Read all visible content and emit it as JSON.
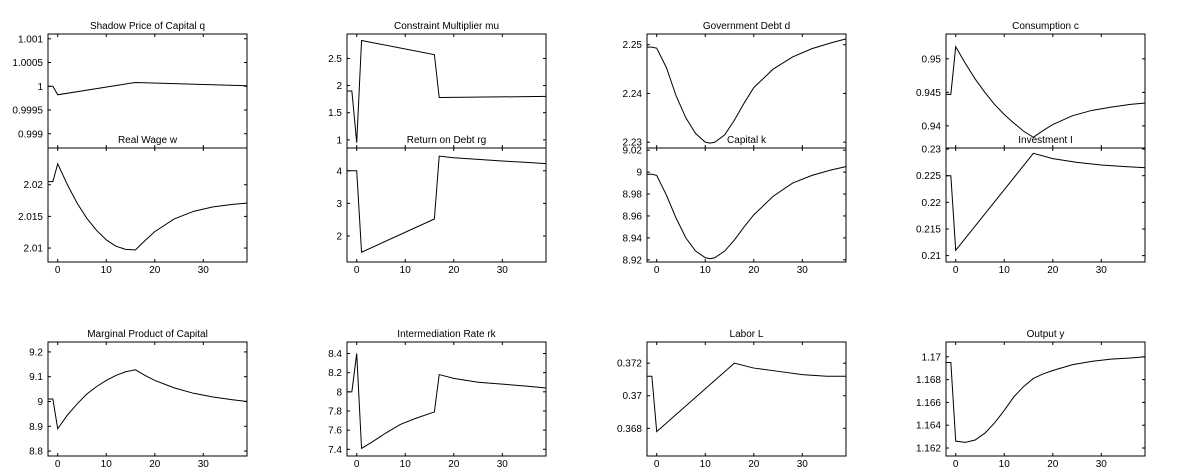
{
  "chart_data": [
    {
      "type": "line",
      "title": "Shadow Price of Capital q",
      "xlim": [
        -2,
        39
      ],
      "ylim": [
        0.9987,
        1.0011
      ],
      "xticks": [
        0,
        10,
        20,
        30
      ],
      "xtick_labels": [
        "0",
        "10",
        "20",
        "30"
      ],
      "yticks": [
        0.999,
        0.9995,
        1,
        1.0005,
        1.001
      ],
      "ytick_labels": [
        "0.999",
        "0.9995",
        "1",
        "1.0005",
        "1.001"
      ],
      "series": [
        {
          "x": [
            -2,
            -1,
            0,
            16,
            39
          ],
          "y": [
            1.0,
            1.0,
            0.99982,
            1.00008,
            1.00001
          ]
        }
      ]
    },
    {
      "type": "line",
      "title": "Constraint Multiplier mu",
      "xlim": [
        -2,
        39
      ],
      "ylim": [
        0.85,
        2.95
      ],
      "xticks": [
        0,
        10,
        20,
        30
      ],
      "xtick_labels": [
        "0",
        "10",
        "20",
        "30"
      ],
      "yticks": [
        1,
        1.5,
        2,
        2.5
      ],
      "ytick_labels": [
        "1",
        "1.5",
        "2",
        "2.5"
      ],
      "series": [
        {
          "x": [
            -2,
            -1,
            0,
            1,
            16,
            17,
            39
          ],
          "y": [
            1.9,
            1.9,
            0.95,
            2.83,
            2.57,
            1.78,
            1.8
          ]
        }
      ]
    },
    {
      "type": "line",
      "title": "Government Debt d",
      "xlim": [
        -2,
        39
      ],
      "ylim": [
        2.2288,
        2.2522
      ],
      "xticks": [
        0,
        10,
        20,
        30
      ],
      "xtick_labels": [
        "0",
        "10",
        "20",
        "30"
      ],
      "yticks": [
        2.23,
        2.24,
        2.25
      ],
      "ytick_labels": [
        "2.23",
        "2.24",
        "2.25"
      ],
      "series": [
        {
          "x": [
            -2,
            -1,
            0,
            2,
            4,
            6,
            8,
            10,
            11,
            12,
            14,
            16,
            18,
            20,
            24,
            28,
            32,
            36,
            39
          ],
          "y": [
            2.2495,
            2.2495,
            2.2493,
            2.2453,
            2.2395,
            2.235,
            2.2318,
            2.23,
            2.2298,
            2.23,
            2.2315,
            2.2345,
            2.238,
            2.2412,
            2.245,
            2.2475,
            2.2492,
            2.2504,
            2.2512
          ]
        }
      ]
    },
    {
      "type": "line",
      "title": "Consumption c",
      "xlim": [
        -2,
        39
      ],
      "ylim": [
        0.9367,
        0.9537
      ],
      "xticks": [
        0,
        10,
        20,
        30
      ],
      "xtick_labels": [
        "0",
        "10",
        "20",
        "30"
      ],
      "yticks": [
        0.94,
        0.945,
        0.95
      ],
      "ytick_labels": [
        "0.94",
        "0.945",
        "0.95"
      ],
      "series": [
        {
          "x": [
            -2,
            -1,
            0,
            2,
            4,
            6,
            8,
            10,
            12,
            14,
            16,
            18,
            20,
            24,
            28,
            32,
            36,
            39
          ],
          "y": [
            0.9447,
            0.9447,
            0.9518,
            0.9493,
            0.947,
            0.945,
            0.9432,
            0.9417,
            0.9404,
            0.9392,
            0.9383,
            0.9393,
            0.9402,
            0.9415,
            0.9423,
            0.9428,
            0.9432,
            0.9434
          ]
        }
      ]
    },
    {
      "type": "line",
      "title": "Real Wage w",
      "xlim": [
        -2,
        39
      ],
      "ylim": [
        2.0078,
        2.0258
      ],
      "xticks": [
        0,
        10,
        20,
        30
      ],
      "xtick_labels": [
        "0",
        "10",
        "20",
        "30"
      ],
      "yticks": [
        2.01,
        2.015,
        2.02
      ],
      "ytick_labels": [
        "2.01",
        "2.015",
        "2.02"
      ],
      "series": [
        {
          "x": [
            -2,
            -1,
            0,
            2,
            4,
            6,
            8,
            10,
            12,
            14,
            16,
            18,
            20,
            24,
            28,
            32,
            36,
            39
          ],
          "y": [
            2.0205,
            2.0205,
            2.0233,
            2.02,
            2.0171,
            2.0147,
            2.0128,
            2.0113,
            2.0103,
            2.0098,
            2.0097,
            2.0112,
            2.0126,
            2.0146,
            2.0158,
            2.0165,
            2.0169,
            2.0171
          ]
        }
      ]
    },
    {
      "type": "line",
      "title": "Return on Debt rg",
      "xlim": [
        -2,
        39
      ],
      "ylim": [
        1.2,
        4.7
      ],
      "xticks": [
        0,
        10,
        20,
        30
      ],
      "xtick_labels": [
        "0",
        "10",
        "20",
        "30"
      ],
      "yticks": [
        2,
        3,
        4
      ],
      "ytick_labels": [
        "2",
        "3",
        "4"
      ],
      "series": [
        {
          "x": [
            -2,
            -1,
            0,
            1,
            16,
            17,
            20,
            25,
            30,
            35,
            39
          ],
          "y": [
            4.0,
            4.0,
            4.0,
            1.5,
            2.52,
            4.45,
            4.4,
            4.35,
            4.3,
            4.26,
            4.22
          ]
        }
      ]
    },
    {
      "type": "line",
      "title": "Capital k",
      "xlim": [
        -2,
        39
      ],
      "ylim": [
        8.918,
        9.022
      ],
      "xticks": [
        0,
        10,
        20,
        30
      ],
      "xtick_labels": [
        "0",
        "10",
        "20",
        "30"
      ],
      "yticks": [
        8.92,
        8.94,
        8.96,
        8.98,
        9,
        9.02
      ],
      "ytick_labels": [
        "8.92",
        "8.94",
        "8.96",
        "8.98",
        "9",
        "9.02"
      ],
      "series": [
        {
          "x": [
            -2,
            -1,
            0,
            2,
            4,
            6,
            8,
            10,
            11,
            12,
            14,
            16,
            18,
            20,
            24,
            28,
            32,
            36,
            39
          ],
          "y": [
            8.998,
            8.998,
            8.997,
            8.979,
            8.958,
            8.94,
            8.928,
            8.922,
            8.921,
            8.922,
            8.928,
            8.938,
            8.95,
            8.961,
            8.978,
            8.99,
            8.997,
            9.002,
            9.005
          ]
        }
      ]
    },
    {
      "type": "line",
      "title": "Investment I",
      "xlim": [
        -2,
        39
      ],
      "ylim": [
        0.2088,
        0.2302
      ],
      "xticks": [
        0,
        10,
        20,
        30
      ],
      "xtick_labels": [
        "0",
        "10",
        "20",
        "30"
      ],
      "yticks": [
        0.21,
        0.215,
        0.22,
        0.225,
        0.23
      ],
      "ytick_labels": [
        "0.21",
        "0.215",
        "0.22",
        "0.225",
        "0.23"
      ],
      "series": [
        {
          "x": [
            -2,
            -1,
            0,
            16,
            20,
            25,
            30,
            35,
            39
          ],
          "y": [
            0.225,
            0.225,
            0.211,
            0.2292,
            0.2282,
            0.2275,
            0.227,
            0.2267,
            0.2265
          ]
        }
      ]
    },
    {
      "type": "line",
      "title": "Marginal Product of Capital",
      "xlim": [
        -2,
        39
      ],
      "ylim": [
        8.78,
        9.24
      ],
      "xticks": [
        0,
        10,
        20,
        30
      ],
      "xtick_labels": [
        "0",
        "10",
        "20",
        "30"
      ],
      "yticks": [
        8.8,
        8.9,
        9,
        9.1,
        9.2
      ],
      "ytick_labels": [
        "8.8",
        "8.9",
        "9",
        "9.1",
        "9.2"
      ],
      "series": [
        {
          "x": [
            -2,
            -1,
            0,
            2,
            4,
            6,
            8,
            10,
            12,
            14,
            16,
            18,
            20,
            24,
            28,
            32,
            36,
            39
          ],
          "y": [
            9.01,
            9.01,
            8.89,
            8.945,
            8.99,
            9.03,
            9.06,
            9.085,
            9.105,
            9.12,
            9.128,
            9.105,
            9.085,
            9.055,
            9.033,
            9.018,
            9.007,
            9.0
          ]
        }
      ]
    },
    {
      "type": "line",
      "title": "Intermediation Rate rk",
      "xlim": [
        -2,
        39
      ],
      "ylim": [
        7.33,
        8.52
      ],
      "xticks": [
        0,
        10,
        20,
        30
      ],
      "xtick_labels": [
        "0",
        "10",
        "20",
        "30"
      ],
      "yticks": [
        7.4,
        7.6,
        7.8,
        8,
        8.2,
        8.4
      ],
      "ytick_labels": [
        "7.4",
        "7.6",
        "7.8",
        "8",
        "8.2",
        "8.4"
      ],
      "series": [
        {
          "x": [
            -2,
            -1,
            0,
            1,
            3,
            6,
            9,
            12,
            16,
            17,
            20,
            25,
            30,
            35,
            39
          ],
          "y": [
            8.0,
            8.0,
            8.4,
            7.41,
            7.47,
            7.57,
            7.66,
            7.72,
            7.79,
            8.18,
            8.14,
            8.1,
            8.08,
            8.06,
            8.04
          ]
        }
      ]
    },
    {
      "type": "line",
      "title": "Labor L",
      "xlim": [
        -2,
        39
      ],
      "ylim": [
        0.3663,
        0.3733
      ],
      "xticks": [
        0,
        10,
        20,
        30
      ],
      "xtick_labels": [
        "0",
        "10",
        "20",
        "30"
      ],
      "yticks": [
        0.368,
        0.37,
        0.372
      ],
      "ytick_labels": [
        "0.368",
        "0.37",
        "0.372"
      ],
      "series": [
        {
          "x": [
            -2,
            -1,
            0,
            16,
            20,
            25,
            30,
            35,
            39
          ],
          "y": [
            0.3712,
            0.3712,
            0.3678,
            0.372,
            0.3717,
            0.3715,
            0.3713,
            0.3712,
            0.3712
          ]
        }
      ]
    },
    {
      "type": "line",
      "title": "Output y",
      "xlim": [
        -2,
        39
      ],
      "ylim": [
        1.1613,
        1.1713
      ],
      "xticks": [
        0,
        10,
        20,
        30
      ],
      "xtick_labels": [
        "0",
        "10",
        "20",
        "30"
      ],
      "yticks": [
        1.162,
        1.164,
        1.166,
        1.168,
        1.17
      ],
      "ytick_labels": [
        "1.162",
        "1.164",
        "1.166",
        "1.168",
        "1.17"
      ],
      "series": [
        {
          "x": [
            -2,
            -1,
            0,
            2,
            4,
            6,
            8,
            10,
            12,
            14,
            16,
            18,
            20,
            24,
            28,
            32,
            36,
            39
          ],
          "y": [
            1.1695,
            1.1695,
            1.1626,
            1.1625,
            1.1627,
            1.1633,
            1.1642,
            1.1653,
            1.1665,
            1.1674,
            1.1681,
            1.1685,
            1.1688,
            1.1693,
            1.1696,
            1.1698,
            1.1699,
            1.17
          ]
        }
      ]
    }
  ]
}
